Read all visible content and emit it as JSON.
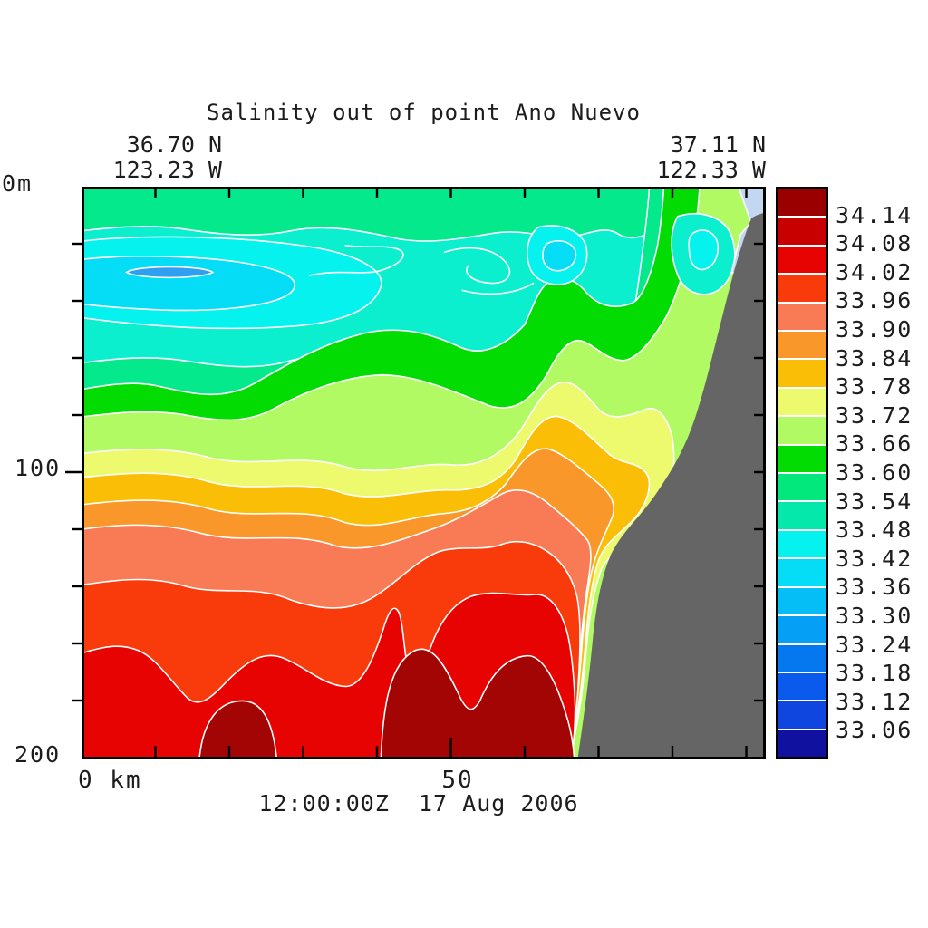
{
  "title": "Salinity out of point Ano Nuevo",
  "header": {
    "left": {
      "lat": "36.70 N",
      "lon": "123.23 W"
    },
    "right": {
      "lat": "37.11 N",
      "lon": "122.33 W"
    }
  },
  "axes": {
    "y_top": "0m",
    "y_mid": "100",
    "y_bottom": "200",
    "x_left": "0 km",
    "x_mid": "50"
  },
  "footer": {
    "timestamp": "12:00:00Z  17 Aug 2006"
  },
  "colorbar": {
    "labels": [
      "34.14",
      "34.08",
      "34.02",
      "33.96",
      "33.90",
      "33.84",
      "33.78",
      "33.72",
      "33.66",
      "33.60",
      "33.54",
      "33.48",
      "33.42",
      "33.36",
      "33.30",
      "33.24",
      "33.18",
      "33.12",
      "33.06"
    ],
    "colors": [
      "#9B0000",
      "#C90000",
      "#E60301",
      "#F93B0C",
      "#F97B56",
      "#F9972A",
      "#FBBE07",
      "#EDFA6E",
      "#B2FA64",
      "#02DC02",
      "#02E87C",
      "#04E8AC",
      "#06F2EE",
      "#05DCF5",
      "#05BEF5",
      "#05A0F5",
      "#0578F0",
      "#0A5AEE",
      "#0F46E0",
      "#1111A0"
    ]
  },
  "chart_data": {
    "type": "contour",
    "title": "Salinity out of point Ano Nuevo",
    "field": "salinity",
    "time": "12:00:00Z 17 Aug 2006",
    "section": {
      "start": {
        "lat": "36.70 N",
        "lon": "123.23 W"
      },
      "end": {
        "lat": "37.11 N",
        "lon": "122.33 W"
      }
    },
    "x_axis": {
      "label": "km",
      "tick_labels": [
        0,
        50
      ],
      "minor_tick_interval_km": 10,
      "range_km": [
        0,
        90
      ]
    },
    "y_axis": {
      "label": "m",
      "tick_labels": [
        0,
        100,
        200
      ],
      "minor_tick_interval_m": 20,
      "range_m": [
        0,
        200
      ],
      "direction": "depth increases downward"
    },
    "levels": [
      33.06,
      33.12,
      33.18,
      33.24,
      33.3,
      33.36,
      33.42,
      33.48,
      33.54,
      33.6,
      33.66,
      33.72,
      33.78,
      33.84,
      33.9,
      33.96,
      34.02,
      34.08,
      34.14
    ],
    "level_step": 0.06,
    "colorbar_orientation": "vertical, highest value (34.14+, dark red) at top, lowest (below 33.06, navy) at bottom",
    "land_mask_color": "#656565",
    "contour_line_color": "#ffffff",
    "features": [
      "Surface layer (0-40 m) mostly 33.48-33.60 (aquamarine/spring green) across the section",
      "Fresher pockets of 33.24-33.48 (cyan to blue cores) between ~10-60 m depth at the left, center and near-coast",
      "Salinity increases monotonically with depth: green ~33.60-33.66 near 60-80 m, yellows ~33.72-33.84 near 90-120 m, oranges ~33.84-33.96 near 120-150 m, reds >34.02 below ~160 m",
      "Dark red pockets exceeding 34.08 at the bottom (~190-200 m)",
      "Isohalines bend downward and pinch together against the continental slope (gray land/bathymetry mask) on the right, with bands of 33.60-33.78 hugging the coast up to the surface",
      "Small very light (lavender) low-salinity sliver at the surface right against the coast"
    ]
  }
}
